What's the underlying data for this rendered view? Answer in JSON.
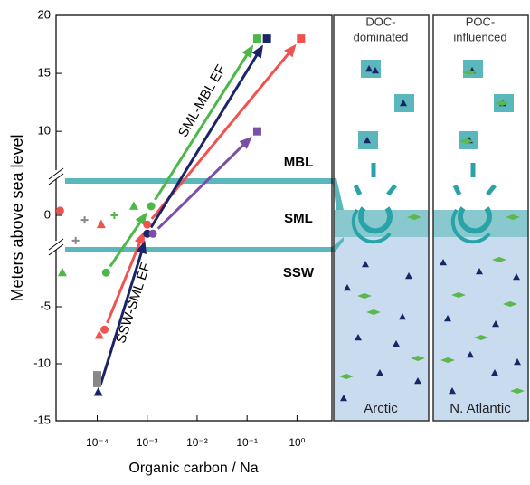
{
  "chart_data": {
    "type": "scatter",
    "xlabel": "Organic carbon / Na",
    "ylabel": "Meters above sea level",
    "xscale": "log",
    "xlim": [
      1.5e-05,
      5
    ],
    "xticks": [
      {
        "value": 0.0001,
        "label": "10⁻⁴"
      },
      {
        "value": 0.001,
        "label": "10⁻³"
      },
      {
        "value": 0.01,
        "label": "10⁻²"
      },
      {
        "value": 0.1,
        "label": "10⁻¹"
      },
      {
        "value": 1,
        "label": "10⁰"
      }
    ],
    "ysegments": [
      {
        "ylim": [
          -15,
          0
        ],
        "yticks": [
          -15,
          -10,
          -5
        ]
      },
      {
        "ylim": [
          -1.5,
          1.5
        ],
        "yticks": [
          0
        ]
      },
      {
        "ylim": [
          6.5,
          20
        ],
        "yticks": [
          10,
          15,
          20
        ]
      }
    ],
    "layers": [
      "SSW",
      "SML",
      "MBL"
    ],
    "annotations": [
      "SSW-SML EF",
      "SML-MBL EF"
    ],
    "series": [
      {
        "color": "#4cb848",
        "arrows": true,
        "x": [
          0.00015,
          0.0012,
          0.16
        ],
        "y": [
          -2,
          0.4,
          18
        ],
        "markers": [
          "circle",
          "circle",
          "square"
        ]
      },
      {
        "color": "#ef5350",
        "arrows": true,
        "x": [
          0.00014,
          0.001,
          1.2
        ],
        "y": [
          -7,
          -0.4,
          18
        ],
        "markers": [
          "circle",
          "circle",
          "square"
        ]
      },
      {
        "color": "#1a2466",
        "arrows": true,
        "x": [
          0.000105,
          0.001,
          0.25
        ],
        "y": [
          -12.5,
          -0.8,
          18
        ],
        "markers": [
          "triangle",
          "circle",
          "square"
        ]
      },
      {
        "color": "#7b4fa8",
        "arrows": true,
        "x": [
          0.0013,
          0.16
        ],
        "y": [
          -0.8,
          10
        ],
        "markers": [
          "circle",
          "square"
        ]
      },
      {
        "color": "#4cb848",
        "arrows": false,
        "x": [
          2e-05,
          0.00054,
          0.00022
        ],
        "y": [
          -2,
          0.4,
          0
        ],
        "markers": [
          "triangle",
          "triangle",
          "plus"
        ]
      },
      {
        "color": "#ef5350",
        "arrows": false,
        "x": [
          1.8e-05,
          0.00012,
          0.00011
        ],
        "y": [
          0.2,
          -0.4,
          -7.5
        ],
        "markers": [
          "circle",
          "triangle",
          "triangle"
        ]
      },
      {
        "color": "#888888",
        "arrows": false,
        "x": [
          3.7e-05,
          5.6e-05,
          0.0001,
          0.0001
        ],
        "y": [
          -1.1,
          -0.2,
          -11,
          -11.7
        ],
        "markers": [
          "plus",
          "plus",
          "square",
          "square"
        ]
      }
    ]
  },
  "panels": [
    {
      "title": [
        "DOC-",
        "dominated"
      ],
      "region": "Arctic"
    },
    {
      "title": [
        "POC-",
        "influenced"
      ],
      "region": "N. Atlantic"
    }
  ]
}
